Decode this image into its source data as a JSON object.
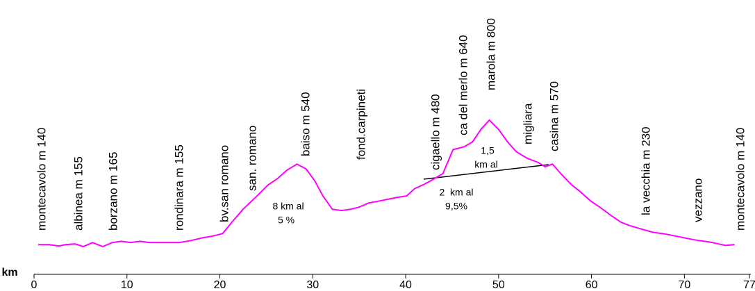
{
  "chart_data": {
    "type": "line",
    "x_label": "km",
    "x": [
      0.45,
      1.6,
      2.7,
      3.4,
      4.4,
      5.3,
      6.3,
      7.4,
      8.4,
      9.4,
      10.4,
      11.4,
      12.4,
      15.6,
      16.9,
      18.2,
      19.1,
      20.3,
      21.4,
      22.5,
      24.0,
      25.2,
      26.2,
      27.2,
      28.3,
      29.3,
      30.2,
      31.1,
      32.1,
      33.1,
      34.1,
      35.0,
      36.0,
      37.2,
      39.0,
      40.1,
      41.0,
      42.0,
      42.7,
      44.0,
      45.1,
      46.3,
      47.2,
      48.1,
      49.0,
      50.0,
      50.9,
      51.9,
      53.1,
      54.3,
      55.0,
      55.8,
      56.7,
      57.8,
      58.8,
      59.9,
      61.0,
      62.1,
      63.2,
      64.0,
      65.5,
      66.6,
      68.1,
      69.2,
      70.3,
      71.5,
      72.6,
      73.7,
      74.4,
      75.4
    ],
    "series": [
      {
        "color": "#ff00ff",
        "values": [
          140,
          140,
          133,
          140,
          144,
          130,
          151,
          130,
          151,
          158,
          151,
          158,
          151,
          151,
          162,
          177,
          184,
          199,
          265,
          328,
          398,
          457,
          490,
          534,
          567,
          541,
          479,
          398,
          328,
          321,
          328,
          339,
          361,
          372,
          390,
          398,
          438,
          460,
          479,
          516,
          644,
          659,
          685,
          751,
          800,
          751,
          689,
          633,
          597,
          575,
          553,
          567,
          516,
          460,
          420,
          372,
          335,
          295,
          258,
          243,
          221,
          206,
          195,
          184,
          173,
          162,
          155,
          144,
          136,
          140
        ]
      }
    ],
    "xlim": [
      0,
      77
    ],
    "xticks": [
      0,
      10,
      20,
      30,
      40,
      50,
      60,
      70,
      77
    ],
    "places": [
      "montecavolo m 140",
      "albinea m 155",
      "borzano m 165",
      "rondinara m 155",
      "bv.san romano",
      "san. romano",
      "baiso m 540",
      "fond.carpineti",
      "cigaello m 480",
      "ca del merlo m 640",
      "marola m 800",
      "migliara",
      "casina m 570",
      "la vecchia m 230",
      "vezzano",
      "montecavolo m 140"
    ],
    "notes": [
      "8 km al",
      "5 %",
      "1,5",
      "km al",
      "2  km al",
      "9,5%"
    ]
  }
}
